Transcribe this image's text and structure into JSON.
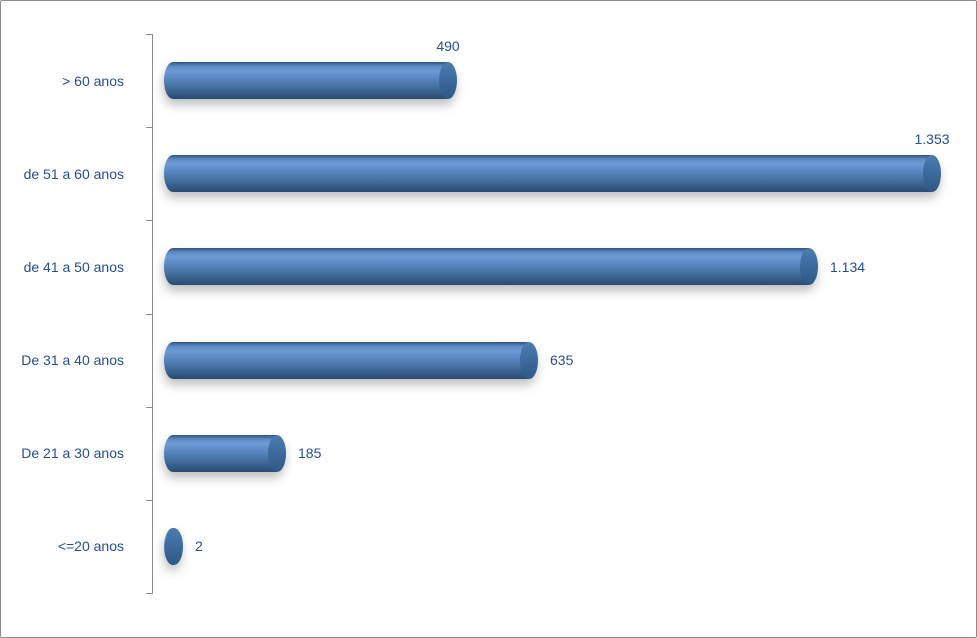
{
  "chart_data": {
    "type": "bar",
    "orientation": "horizontal",
    "style": "3d-cylinder",
    "title": "",
    "xlabel": "",
    "ylabel": "",
    "categories": [
      "> 60 anos",
      "de 51 a 60 anos",
      "de 41 a 50 anos",
      "De 31 a 40 anos",
      "De 21 a 30 anos",
      "<=20 anos"
    ],
    "values": [
      490,
      1353,
      1134,
      635,
      185,
      2
    ],
    "value_labels": [
      "490",
      "1.353",
      "1.134",
      "635",
      "185",
      "2"
    ],
    "label_positions": [
      "above-end",
      "above-end",
      "right",
      "right",
      "right",
      "right"
    ],
    "xlim": [
      0,
      1400
    ],
    "grid": false,
    "legend": false,
    "colors": {
      "bar_main": "#4F81BD",
      "bar_highlight": "#6D9BD4",
      "bar_dark": "#2A4A72",
      "cap": "#3F6FA4",
      "label_text": "#254F94",
      "axis_line": "#8C8C8C",
      "frame_border": "#8C8C8C",
      "background": "#FFFFFF"
    }
  }
}
